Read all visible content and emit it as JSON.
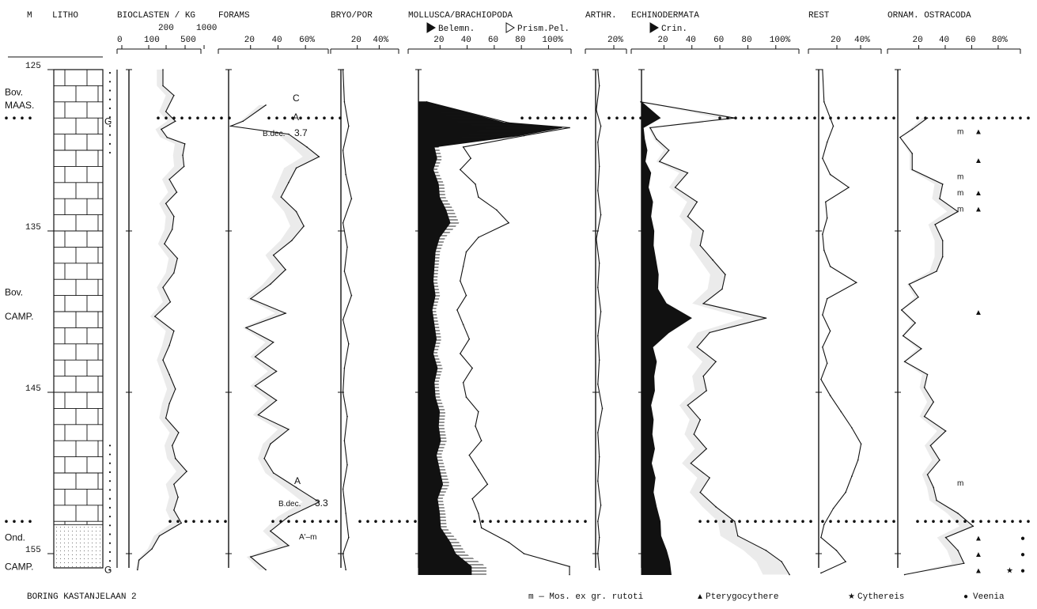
{
  "chart_data": {
    "type": "line",
    "title": "",
    "footer_title": "BORING KASTANJELAAN 2",
    "depth_axis": {
      "label": "M",
      "min": 125,
      "max": 155,
      "ticks": [
        "125",
        "135",
        "145",
        "155"
      ],
      "tick_values": [
        125,
        135,
        145,
        155
      ]
    },
    "litho_header": "LITHO",
    "boundaries": [
      {
        "label": "Bov. MAAS. / Bov. CAMP.",
        "depth": 128
      },
      {
        "label": "Bov. CAMP. / Ond. CAMP.",
        "depth": 153
      }
    ],
    "stage_labels": [
      {
        "text": "Bov.",
        "depth": 126.4
      },
      {
        "text": "MAAS.",
        "depth": 127.2
      },
      {
        "text": "Bov.",
        "depth": 138.8
      },
      {
        "text": "CAMP.",
        "depth": 140.3
      },
      {
        "text": "Ond.",
        "depth": 154.0
      },
      {
        "text": "CAMP.",
        "depth": 155.8
      }
    ],
    "litho_marker": {
      "text": "G",
      "depths": [
        128.2,
        156.0
      ]
    },
    "panels": [
      {
        "id": "bioclasten",
        "header": "BIOCLASTEN / KG",
        "scale": "log",
        "xlim": [
          0,
          1000
        ],
        "tick_labels_top": [
          "200",
          "1000"
        ],
        "tick_labels_bottom": [
          "0",
          "100",
          "500"
        ],
        "series": [
          {
            "depths": [
              125.0,
              126.0,
              126.6,
              127.6,
              128.2,
              128.7,
              129.2,
              129.6,
              130.3,
              131.0,
              131.8,
              132.6,
              133.3,
              134.1,
              134.9,
              135.8,
              136.7,
              137.6,
              138.5,
              139.4,
              140.3,
              141.2,
              142.1,
              143.0,
              143.9,
              144.8,
              145.7,
              146.6,
              147.5,
              148.3,
              149.1,
              149.9,
              150.7,
              151.5,
              152.3,
              153.1,
              153.9,
              154.7,
              155.4,
              156.0
            ],
            "values": [
              100,
              100,
              200,
              120,
              220,
              90,
              130,
              400,
              350,
              380,
              150,
              240,
              120,
              200,
              180,
              110,
              250,
              200,
              100,
              160,
              60,
              200,
              150,
              100,
              150,
              220,
              150,
              120,
              270,
              180,
              220,
              450,
              200,
              260,
              200,
              320,
              80,
              50,
              22,
              20
            ]
          }
        ]
      },
      {
        "id": "forams",
        "header": "FORAMS",
        "unit": "%",
        "xlim": [
          0,
          65
        ],
        "tick_labels": [
          "20",
          "40",
          "60%"
        ],
        "series": [
          {
            "depths": [
              127.2,
              128.2,
              128.5,
              129.0,
              129.8,
              130.4,
              131.1,
              132.0,
              132.9,
              133.8,
              134.7,
              135.6,
              136.5,
              137.4,
              138.3,
              139.2,
              140.1,
              141.0,
              141.9,
              142.8,
              143.7,
              144.6,
              145.5,
              146.4,
              147.3,
              148.2,
              149.1,
              150.0,
              150.9,
              151.8,
              152.7,
              153.6,
              154.5,
              155.2,
              156.0
            ],
            "values": [
              25,
              10,
              2,
              40,
              52,
              60,
              45,
              40,
              35,
              45,
              50,
              42,
              30,
              38,
              28,
              15,
              38,
              12,
              30,
              18,
              32,
              18,
              32,
              20,
              40,
              28,
              24,
              30,
              45,
              60,
              40,
              28,
              40,
              15,
              25
            ]
          }
        ],
        "annotations": [
          "C",
          "A",
          "B.dec.",
          "3.7",
          "A",
          "B.dec.",
          "3.3",
          "A'–m"
        ]
      },
      {
        "id": "bryopor",
        "header": "BRYO/POR",
        "unit": "%",
        "xlim": [
          0,
          40
        ],
        "tick_labels": [
          "20",
          "40%"
        ],
        "series": [
          {
            "depths": [
              125,
              127,
              128.5,
              130,
              131.5,
              133,
              134.5,
              136,
              137.5,
              139,
              140.5,
              142,
              143.5,
              145,
              146.5,
              148,
              149.5,
              151,
              152.5,
              154,
              155,
              156
            ],
            "values": [
              2,
              3,
              6,
              2,
              4,
              8,
              2,
              5,
              3,
              8,
              2,
              6,
              3,
              2,
              5,
              3,
              5,
              2,
              4,
              6,
              2,
              4
            ]
          }
        ]
      },
      {
        "id": "mollusca",
        "header": "MOLLUSCA/BRACHIOPODA",
        "legend": [
          "Belemn.",
          "Prism.Pel."
        ],
        "unit": "%",
        "xlim": [
          0,
          100
        ],
        "tick_labels": [
          "20",
          "40",
          "60",
          "80",
          "100%"
        ],
        "series": [
          {
            "name": "Mollusca/Brachiopoda",
            "depths": [
              127.0,
              128.3,
              128.6,
              129.1,
              129.8,
              130.5,
              131.2,
              132.1,
              132.9,
              133.7,
              134.5,
              135.4,
              136.3,
              137.2,
              138.1,
              139.0,
              139.9,
              140.8,
              141.7,
              142.6,
              143.5,
              144.4,
              145.3,
              146.2,
              147.1,
              148.0,
              148.9,
              149.8,
              150.7,
              151.6,
              152.5,
              153.4,
              154.3,
              155.0,
              155.8,
              156.3
            ],
            "values": [
              6,
              60,
              100,
              70,
              30,
              35,
              28,
              38,
              40,
              52,
              60,
              40,
              32,
              30,
              28,
              32,
              26,
              30,
              34,
              28,
              36,
              30,
              32,
              40,
              38,
              42,
              34,
              40,
              46,
              36,
              40,
              42,
              60,
              70,
              100,
              100
            ]
          }
        ]
      },
      {
        "id": "arthr",
        "header": "ARTHR.",
        "unit": "%",
        "xlim": [
          0,
          20
        ],
        "tick_labels": [
          "20%"
        ],
        "series": [
          {
            "depths": [
              125,
              126,
              127.5,
              128.5,
              129.5,
              131,
              132.5,
              134,
              135.5,
              137,
              138.5,
              140,
              141.5,
              143,
              144.5,
              146,
              147.5,
              149,
              150.5,
              152,
              153,
              154,
              155,
              156
            ],
            "values": [
              2,
              3,
              1,
              4,
              2,
              3,
              2,
              4,
              1,
              3,
              2,
              4,
              2,
              3,
              2,
              5,
              2,
              3,
              2,
              4,
              2,
              3,
              2,
              3
            ]
          }
        ]
      },
      {
        "id": "echinodermata",
        "header": "ECHINODERMATA",
        "legend": [
          "Crin."
        ],
        "unit": "%",
        "xlim": [
          0,
          100
        ],
        "tick_labels": [
          "20",
          "40",
          "60",
          "80",
          "100%"
        ],
        "series": [
          {
            "name": "Echinodermata",
            "depths": [
              127.0,
              128.0,
              128.6,
              129.3,
              130.0,
              130.7,
              131.4,
              132.3,
              133.2,
              134.1,
              135.0,
              135.9,
              136.8,
              137.7,
              138.6,
              139.5,
              140.4,
              141.3,
              142.2,
              143.1,
              144.0,
              144.9,
              145.8,
              146.7,
              147.6,
              148.5,
              149.4,
              150.3,
              151.2,
              152.1,
              153.0,
              153.9,
              154.8,
              155.5,
              156.3
            ],
            "values": [
              0,
              60,
              6,
              10,
              18,
              12,
              30,
              22,
              36,
              30,
              40,
              38,
              46,
              54,
              52,
              40,
              80,
              44,
              36,
              48,
              40,
              42,
              30,
              38,
              34,
              42,
              32,
              44,
              38,
              48,
              60,
              62,
              80,
              90,
              95
            ]
          }
        ]
      },
      {
        "id": "rest",
        "header": "REST",
        "unit": "%",
        "xlim": [
          0,
          40
        ],
        "tick_labels": [
          "20",
          "40%"
        ],
        "series": [
          {
            "depths": [
              125,
              127,
              128.5,
              129.5,
              130.5,
              131.5,
              132.3,
              133.2,
              134.2,
              135.2,
              136.2,
              137.2,
              138.2,
              139.2,
              140.2,
              141.2,
              142.2,
              143.2,
              144.2,
              145.2,
              146.2,
              147.2,
              148.2,
              149.2,
              150.2,
              151.2,
              152.2,
              153.2,
              154.0,
              154.8,
              155.5,
              156.2
            ],
            "values": [
              3,
              4,
              10,
              6,
              3,
              8,
              20,
              5,
              6,
              3,
              4,
              8,
              25,
              6,
              3,
              8,
              3,
              6,
              2,
              8,
              15,
              22,
              28,
              26,
              22,
              18,
              10,
              4,
              2,
              12,
              18,
              2
            ]
          }
        ]
      },
      {
        "id": "ostracoda",
        "header": "ORNAM. OSTRACODA",
        "unit": "%",
        "xlim": [
          0,
          80
        ],
        "tick_labels": [
          "20",
          "40",
          "60",
          "80%"
        ],
        "series": [
          {
            "depths": [
              128.0,
              128.7,
              129.2,
              130.2,
              131.2,
              132.1,
              133.0,
              133.8,
              134.6,
              135.6,
              136.6,
              137.5,
              138.3,
              139.1,
              139.9,
              140.7,
              141.5,
              142.3,
              143.1,
              143.9,
              144.7,
              145.6,
              146.5,
              147.4,
              148.3,
              149.2,
              150.1,
              150.9,
              151.7,
              152.5,
              153.3,
              154.0,
              154.8,
              155.6,
              156.3
            ],
            "values": [
              20,
              10,
              2,
              10,
              10,
              30,
              28,
              40,
              25,
              30,
              30,
              26,
              8,
              14,
              3,
              12,
              4,
              16,
              5,
              20,
              18,
              24,
              18,
              32,
              22,
              28,
              20,
              24,
              26,
              40,
              50,
              32,
              40,
              44,
              5
            ]
          }
        ],
        "symbols": [
          {
            "char": "m",
            "text": "m",
            "depth": 128.8
          },
          {
            "char": "▲",
            "depth": 128.8
          },
          {
            "char": "▲",
            "depth": 130.6
          },
          {
            "char": "m",
            "text": "m",
            "depth": 131.6
          },
          {
            "char": "m",
            "text": "m",
            "depth": 132.6
          },
          {
            "char": "▲",
            "depth": 132.6
          },
          {
            "char": "m",
            "text": "m",
            "depth": 133.6
          },
          {
            "char": "▲",
            "depth": 133.6
          },
          {
            "char": "▲",
            "depth": 140.0
          },
          {
            "char": "m",
            "text": "m",
            "depth": 150.6
          },
          {
            "char": "▲",
            "depth": 154.0
          },
          {
            "char": "●",
            "depth": 154.0
          },
          {
            "char": "▲",
            "depth": 155.0
          },
          {
            "char": "●",
            "depth": 155.0
          },
          {
            "char": "▲",
            "depth": 156.0
          },
          {
            "char": "★",
            "depth": 156.0
          },
          {
            "char": "●",
            "depth": 156.0
          }
        ]
      }
    ],
    "legend_footer": [
      {
        "symbol": "m",
        "text": "m — Mos. ex gr. rutoti"
      },
      {
        "symbol": "▲",
        "text": "Pterygocythere"
      },
      {
        "symbol": "★",
        "text": "Cythereis"
      },
      {
        "symbol": "●",
        "text": "Veenia"
      }
    ],
    "grid": false
  }
}
